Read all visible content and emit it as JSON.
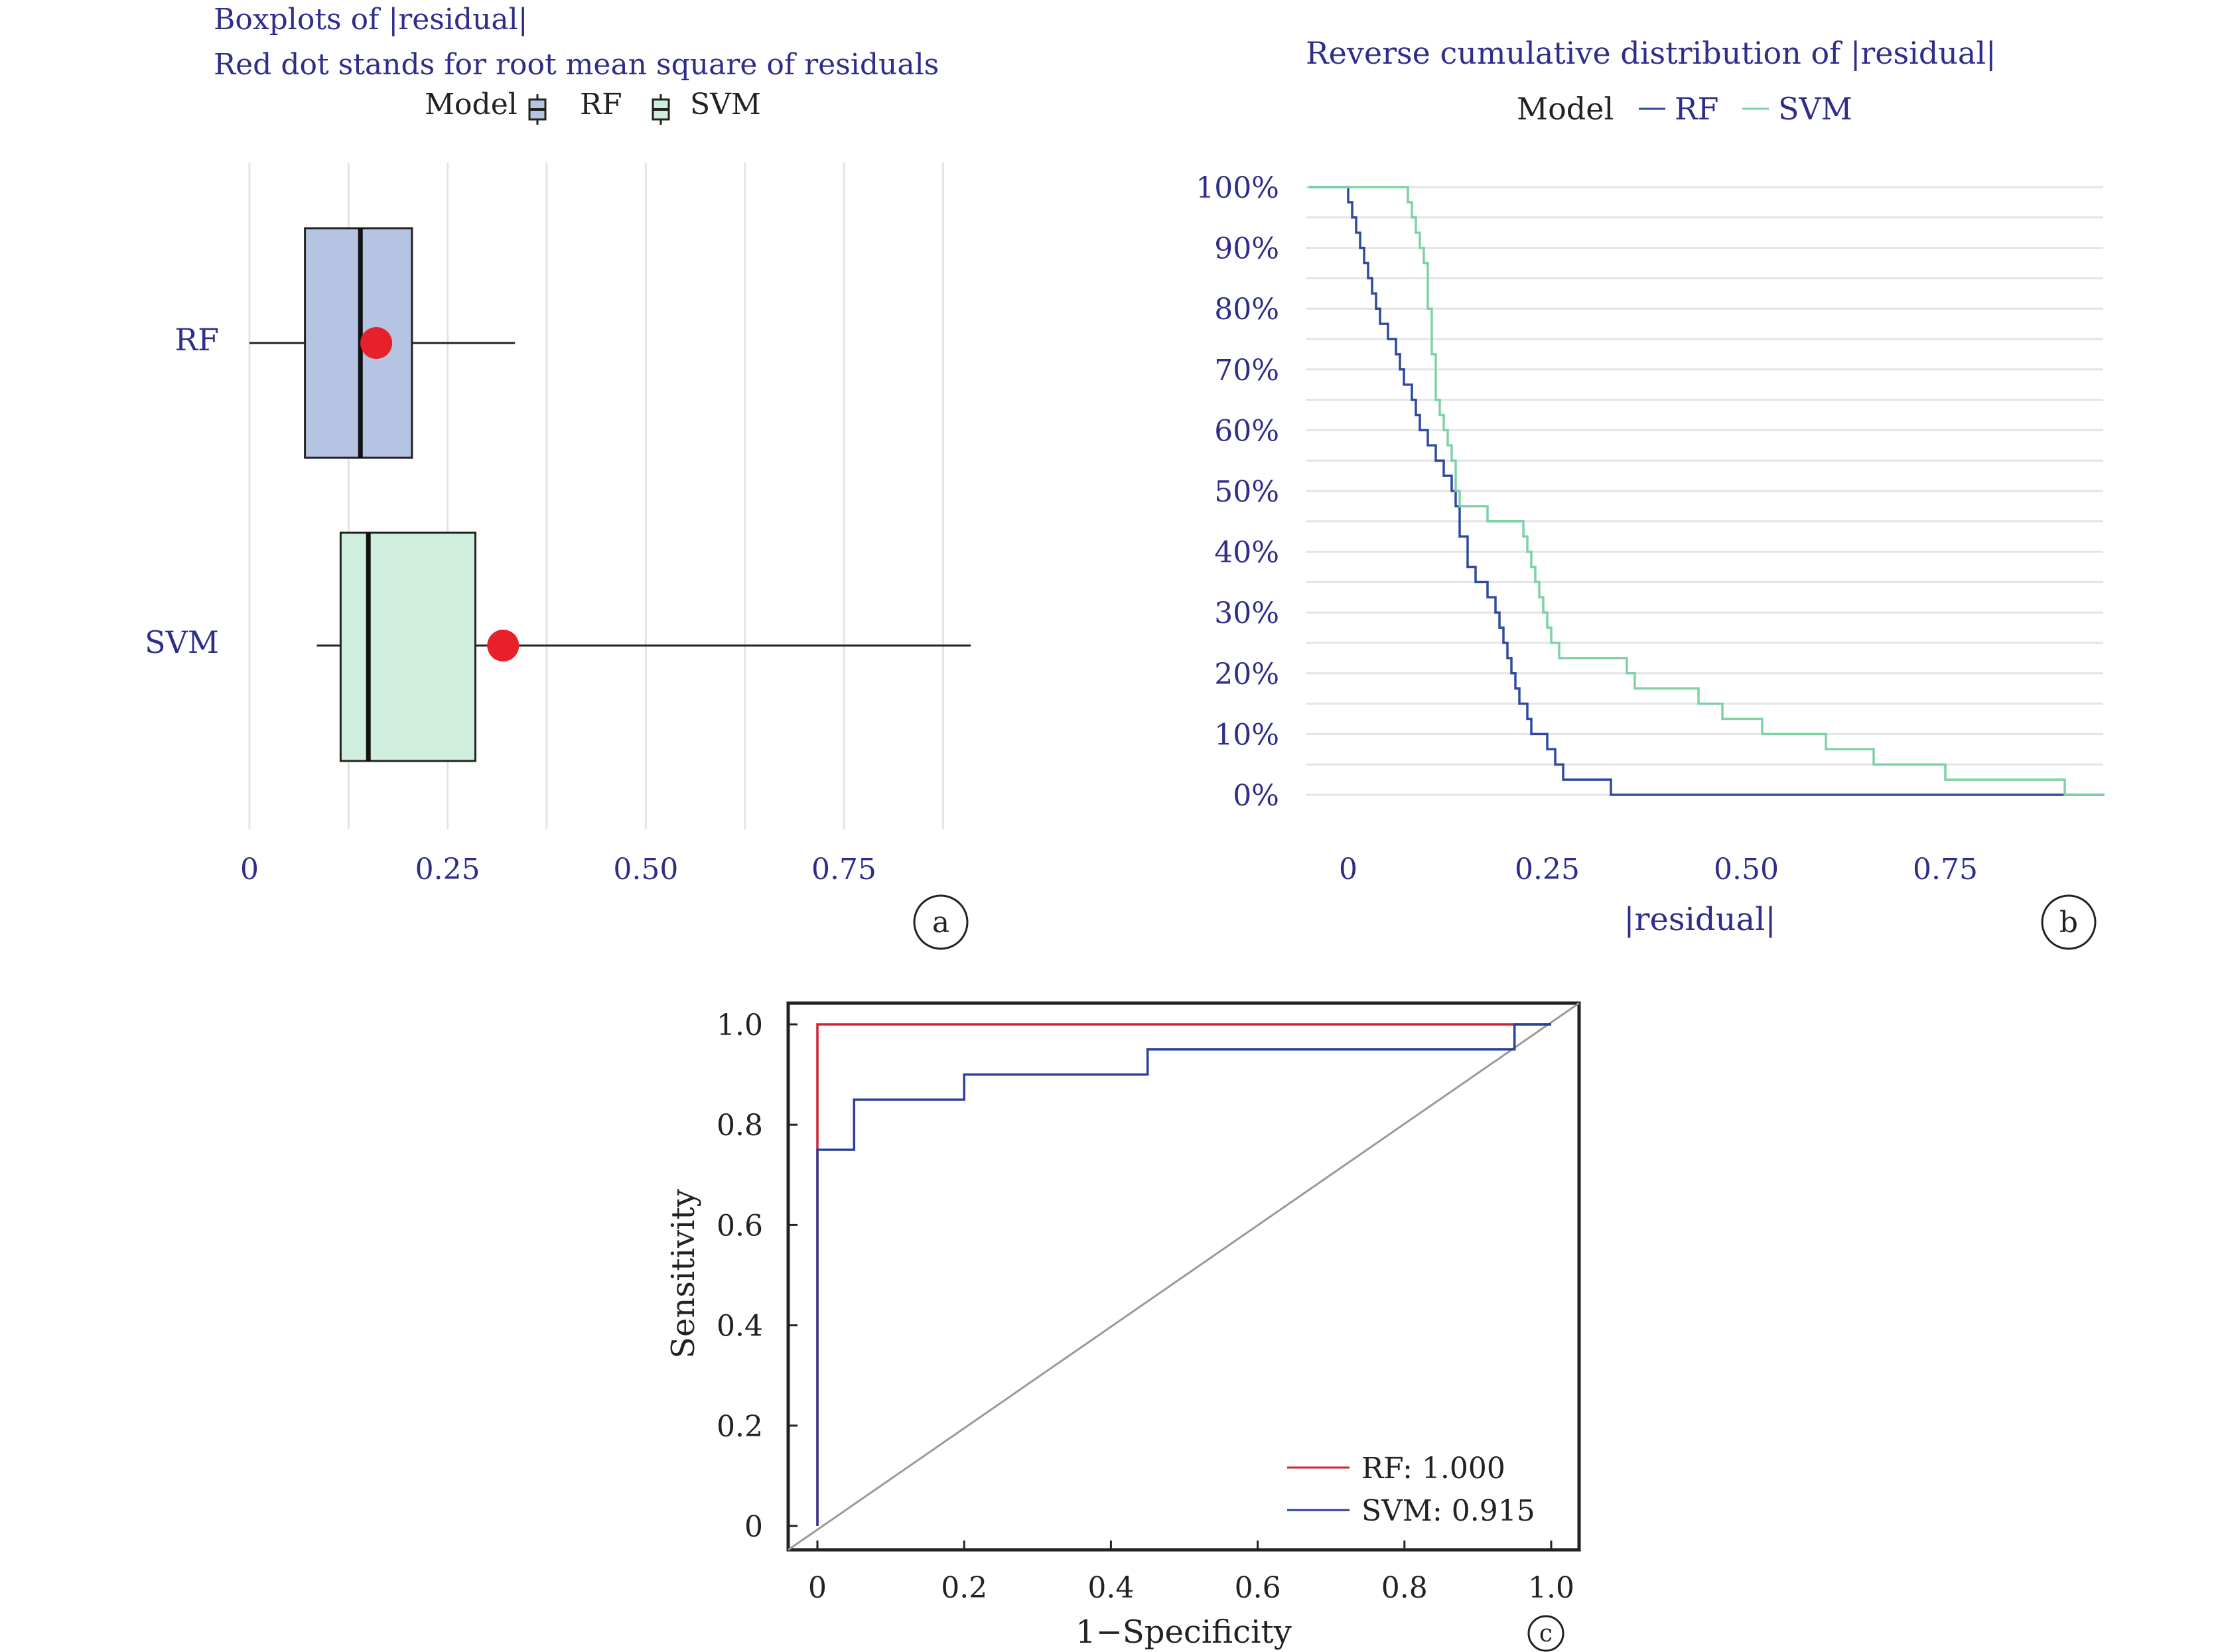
{
  "colors": {
    "navy_text": "#2e2e8a",
    "rf_box_fill": "#b4c4e2",
    "svm_box_fill": "#cfeedd",
    "rmse_dot": "#e8202a",
    "ecdf_rf_line": "#2f4a9e",
    "ecdf_svm_line": "#7fd1a6",
    "roc_rf_line": "#d22030",
    "roc_svm_line": "#2a3f9a",
    "diagonal": "#9a9a9a",
    "grid": "#e4e4e4"
  },
  "chart_data": [
    {
      "panel": "a",
      "type": "boxplot",
      "title": "Boxplots of |residual|",
      "subtitle": "Red dot stands for root mean square of residuals",
      "legend_title": "Model",
      "legend_position": "top",
      "xlim": [
        -0.02,
        0.92
      ],
      "xticks": [
        0,
        0.25,
        0.5,
        0.75
      ],
      "xtick_labels": [
        "0",
        "0.25",
        "0.50",
        "0.75"
      ],
      "grid": true,
      "series": [
        {
          "name": "RF",
          "min": 0.0,
          "q1": 0.07,
          "median": 0.14,
          "q3": 0.205,
          "max": 0.335,
          "rmse": 0.16
        },
        {
          "name": "SVM",
          "min": 0.085,
          "q1": 0.115,
          "median": 0.15,
          "q3": 0.285,
          "max": 0.91,
          "rmse": 0.32
        }
      ]
    },
    {
      "panel": "b",
      "type": "line",
      "title": "Reverse cumulative distribution of |residual|",
      "legend_title": "Model",
      "legend_position": "top",
      "xlabel": "|residual|",
      "xlim": [
        -0.05,
        0.95
      ],
      "ylim": [
        0,
        100
      ],
      "xticks": [
        0,
        0.25,
        0.5,
        0.75
      ],
      "xtick_labels": [
        "0",
        "0.25",
        "0.50",
        "0.75"
      ],
      "yticks": [
        0,
        10,
        20,
        30,
        40,
        50,
        60,
        70,
        80,
        90,
        100
      ],
      "ytick_labels": [
        "0%",
        "10%",
        "20%",
        "30%",
        "40%",
        "50%",
        "60%",
        "70%",
        "80%",
        "90%",
        "100%"
      ],
      "grid": true,
      "series": [
        {
          "name": "RF",
          "step_x": [
            -0.05,
            0.0,
            0.005,
            0.01,
            0.015,
            0.02,
            0.025,
            0.03,
            0.035,
            0.04,
            0.05,
            0.06,
            0.065,
            0.07,
            0.08,
            0.085,
            0.09,
            0.1,
            0.11,
            0.12,
            0.13,
            0.135,
            0.14,
            0.15,
            0.16,
            0.175,
            0.185,
            0.19,
            0.195,
            0.2,
            0.205,
            0.21,
            0.215,
            0.225,
            0.23,
            0.25,
            0.26,
            0.27,
            0.33,
            0.9,
            0.95
          ],
          "y": [
            100,
            97.5,
            95,
            92.5,
            90,
            87.5,
            85,
            82.5,
            80,
            77.5,
            75,
            72.5,
            70,
            67.5,
            65,
            62.5,
            60,
            57.5,
            55,
            52.5,
            50,
            47.5,
            42.5,
            37.5,
            35,
            32.5,
            30,
            27.5,
            25,
            22.5,
            20,
            17.5,
            15,
            12.5,
            10,
            7.5,
            5,
            2.5,
            0,
            0,
            0
          ]
        },
        {
          "name": "SVM",
          "step_x": [
            -0.05,
            0.075,
            0.08,
            0.085,
            0.09,
            0.095,
            0.1,
            0.105,
            0.11,
            0.115,
            0.12,
            0.125,
            0.13,
            0.135,
            0.14,
            0.175,
            0.22,
            0.225,
            0.23,
            0.235,
            0.24,
            0.245,
            0.25,
            0.255,
            0.265,
            0.28,
            0.35,
            0.36,
            0.44,
            0.47,
            0.52,
            0.6,
            0.66,
            0.75,
            0.9,
            0.95
          ],
          "y": [
            100,
            97.5,
            95,
            92.5,
            90,
            87.5,
            80,
            72.5,
            65,
            62.5,
            60,
            57.5,
            55,
            50,
            47.5,
            45,
            42.5,
            40,
            37.5,
            35,
            32.5,
            30,
            27.5,
            25,
            22.5,
            22.5,
            20,
            17.5,
            15,
            12.5,
            10,
            7.5,
            5,
            2.5,
            0,
            0
          ]
        }
      ]
    },
    {
      "panel": "c",
      "type": "line",
      "xlabel": "1−Specificity",
      "ylabel": "Sensitivity",
      "xlim": [
        -0.04,
        1.04
      ],
      "ylim": [
        -0.04,
        1.04
      ],
      "xticks": [
        0,
        0.2,
        0.4,
        0.6,
        0.8,
        1.0
      ],
      "xtick_labels": [
        "0",
        "0.2",
        "0.4",
        "0.6",
        "0.8",
        "1.0"
      ],
      "yticks": [
        0,
        0.2,
        0.4,
        0.6,
        0.8,
        1.0
      ],
      "ytick_labels": [
        "0",
        "0.2",
        "0.4",
        "0.6",
        "0.8",
        "1.0"
      ],
      "legend_position": "bottom-right",
      "grid": false,
      "series": [
        {
          "name": "RF",
          "label": "RF: 1.000",
          "x": [
            0,
            0,
            1.0
          ],
          "y": [
            0,
            1.0,
            1.0
          ]
        },
        {
          "name": "SVM",
          "label": "SVM: 0.915",
          "x": [
            0,
            0,
            0.05,
            0.05,
            0.2,
            0.2,
            0.45,
            0.45,
            0.95,
            0.95,
            1.0
          ],
          "y": [
            0,
            0.75,
            0.75,
            0.85,
            0.85,
            0.9,
            0.9,
            0.95,
            0.95,
            1.0,
            1.0
          ]
        }
      ]
    }
  ],
  "panel_labels": {
    "a": "a",
    "b": "b",
    "c": "c"
  }
}
